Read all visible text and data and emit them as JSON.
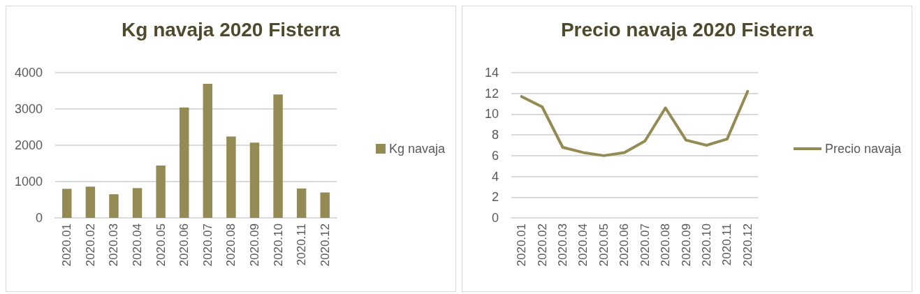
{
  "chart_data": [
    {
      "type": "bar",
      "title": "Kg navaja 2020 Fisterra",
      "categories": [
        "2020.01",
        "2020.02",
        "2020.03",
        "2020.04",
        "2020.05",
        "2020.06",
        "2020.07",
        "2020.08",
        "2020.09",
        "2020.10",
        "2020.11",
        "2020.12"
      ],
      "series": [
        {
          "name": "Kg navaja",
          "color": "#948a54",
          "values": [
            800,
            860,
            650,
            820,
            1440,
            3040,
            3690,
            2240,
            2070,
            3400,
            810,
            700
          ]
        }
      ],
      "ylim": [
        0,
        4000
      ],
      "yticks": [
        0,
        1000,
        2000,
        3000,
        4000
      ],
      "grid": "y",
      "legend": "right"
    },
    {
      "type": "line",
      "title": "Precio navaja 2020 Fisterra",
      "categories": [
        "2020.01",
        "2020.02",
        "2020.03",
        "2020.04",
        "2020.05",
        "2020.06",
        "2020.07",
        "2020.08",
        "2020.09",
        "2020.10",
        "2020.11",
        "2020.12"
      ],
      "series": [
        {
          "name": "Precio navaja",
          "color": "#948a54",
          "values": [
            11.7,
            10.7,
            6.8,
            6.3,
            6.0,
            6.3,
            7.4,
            10.6,
            7.5,
            7.0,
            7.6,
            12.2
          ]
        }
      ],
      "ylim": [
        0,
        14
      ],
      "yticks": [
        0,
        2,
        4,
        6,
        8,
        10,
        12,
        14
      ],
      "grid": "y",
      "legend": "right",
      "marker": "none",
      "line_style": "solid"
    }
  ]
}
